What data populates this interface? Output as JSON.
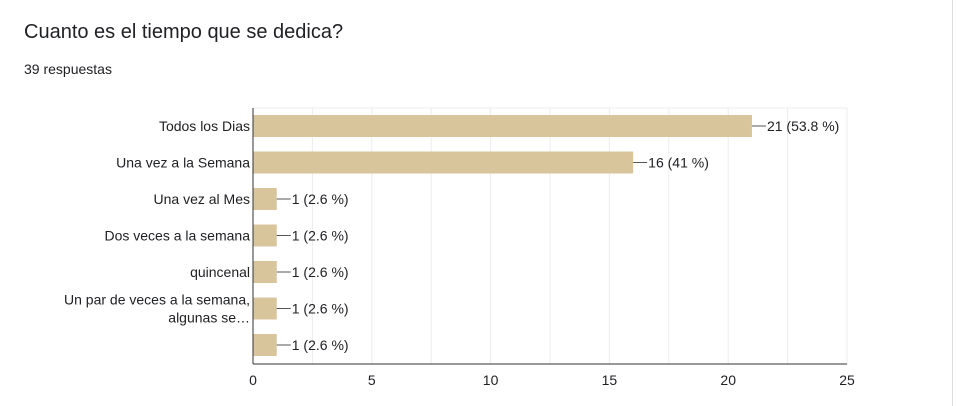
{
  "header": {
    "question": "Cuanto es el tiempo que se dedica?",
    "responses": "39 respuestas"
  },
  "colors": {
    "bar": "#d9c59c",
    "grid": "#ececec",
    "axis": "#333333",
    "connector": "#555555"
  },
  "chart_data": {
    "type": "bar",
    "orientation": "horizontal",
    "title": "Cuanto es el tiempo que se dedica?",
    "xlabel": "",
    "ylabel": "",
    "xlim": [
      0,
      25
    ],
    "x_ticks": [
      0,
      5,
      10,
      15,
      20,
      25
    ],
    "grid": true,
    "categories": [
      [
        "Todos los Dias"
      ],
      [
        "Una vez a la Semana"
      ],
      [
        "Una vez al Mes"
      ],
      [
        "Dos veces a la semana"
      ],
      [
        "quincenal"
      ],
      [
        "Un par de veces a la semana,",
        "algunas se…"
      ],
      [
        ""
      ]
    ],
    "values": [
      21,
      16,
      1,
      1,
      1,
      1,
      1
    ],
    "data_labels": [
      "21 (53.8 %)",
      "16 (41 %)",
      "1 (2.6 %)",
      "1 (2.6 %)",
      "1 (2.6 %)",
      "1 (2.6 %)",
      "1 (2.6 %)"
    ]
  }
}
